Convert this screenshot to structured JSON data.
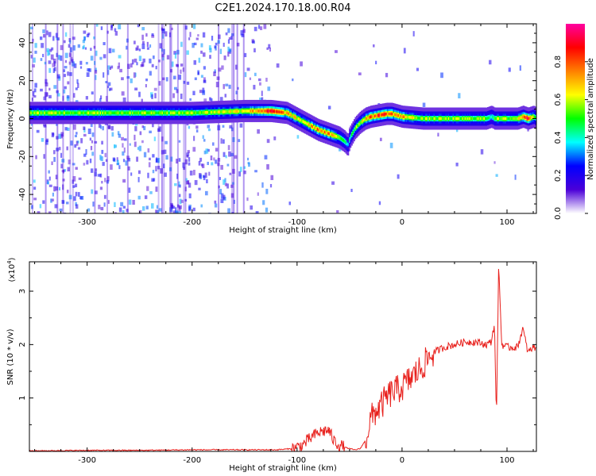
{
  "title": "C2E1.2024.170.18.00.R04",
  "chart_data": [
    {
      "type": "heatmap",
      "xlabel": "Height of straight line (km)",
      "ylabel": "Frequency (Hz)",
      "xlim": [
        -355,
        128
      ],
      "ylim": [
        -50,
        50
      ],
      "x_ticks": [
        -300,
        -200,
        -100,
        0,
        100
      ],
      "y_ticks": [
        -40,
        -20,
        0,
        20,
        40
      ],
      "grid": false,
      "colorbar": {
        "label": "Normalized spectral amplitude",
        "range": [
          0,
          1
        ],
        "ticks": [
          "0.0",
          "0.2",
          "0.4",
          "0.6",
          "0.8"
        ],
        "colors": [
          "#ffffff",
          "#4b00d8",
          "#0000ff",
          "#00ffff",
          "#00ff00",
          "#ffff00",
          "#ff8000",
          "#ff0000",
          "#ff00a0"
        ]
      },
      "ridge": {
        "x": [
          -355,
          -300,
          -250,
          -200,
          -150,
          -125,
          -110,
          -100,
          -90,
          -80,
          -70,
          -60,
          -55,
          -52,
          -50,
          -45,
          -40,
          -35,
          -30,
          -25,
          -20,
          -15,
          -10,
          0,
          10,
          20,
          40,
          60,
          80,
          85,
          88,
          95,
          105,
          110,
          115,
          120,
          125,
          128
        ],
        "frequency": [
          3,
          3,
          3,
          3,
          4,
          4,
          3,
          0,
          -3,
          -6,
          -8,
          -10,
          -12,
          -14,
          -10,
          -5,
          -2,
          0,
          1,
          1.5,
          2,
          2.5,
          2.5,
          1,
          0.5,
          0,
          0,
          0,
          0,
          1,
          0,
          0,
          0,
          0,
          1,
          0,
          1,
          0
        ],
        "amplitude": [
          0.55,
          0.55,
          0.55,
          0.55,
          0.65,
          0.85,
          0.7,
          0.6,
          0.65,
          0.75,
          0.7,
          0.55,
          0.5,
          0.35,
          0.45,
          0.55,
          0.6,
          0.7,
          0.75,
          0.8,
          0.85,
          0.8,
          0.75,
          0.7,
          0.6,
          0.55,
          0.55,
          0.55,
          0.55,
          0.4,
          0.55,
          0.55,
          0.55,
          0.6,
          0.8,
          0.9,
          0.6,
          0.55
        ]
      }
    },
    {
      "type": "line",
      "xlabel": "Height of straight line (km)",
      "ylabel": "SNR (10 * v/v)",
      "y_scale_label": "(x10",
      "y_scale_exponent": "4",
      "y_scale_close": ")",
      "xlim": [
        -355,
        128
      ],
      "ylim": [
        0,
        3.55
      ],
      "x_ticks": [
        -300,
        -200,
        -100,
        0,
        100
      ],
      "y_ticks": [
        1,
        2,
        3
      ],
      "grid": false,
      "series": [
        {
          "color": "#e8201c",
          "x": [
            -355,
            -300,
            -250,
            -200,
            -150,
            -120,
            -105,
            -100,
            -95,
            -90,
            -85,
            -80,
            -75,
            -70,
            -65,
            -60,
            -55,
            -50,
            -45,
            -40,
            -35,
            -30,
            -25,
            -20,
            -15,
            -10,
            -5,
            0,
            5,
            10,
            15,
            20,
            25,
            30,
            40,
            50,
            60,
            70,
            80,
            85,
            88,
            90,
            92,
            95,
            100,
            110,
            115,
            120,
            125,
            128
          ],
          "y": [
            0.01,
            0.02,
            0.02,
            0.03,
            0.03,
            0.03,
            0.05,
            0.08,
            0.12,
            0.2,
            0.28,
            0.35,
            0.38,
            0.4,
            0.2,
            0.12,
            0.08,
            0.05,
            0.03,
            0.05,
            0.2,
            0.6,
            0.75,
            0.85,
            1.0,
            1.1,
            1.15,
            1.2,
            1.3,
            1.4,
            1.5,
            1.6,
            1.75,
            1.85,
            1.95,
            2.0,
            2.05,
            2.05,
            2.0,
            2.05,
            2.4,
            0.6,
            3.5,
            2.0,
            1.95,
            1.95,
            2.3,
            1.85,
            1.95,
            1.95
          ]
        }
      ]
    }
  ]
}
